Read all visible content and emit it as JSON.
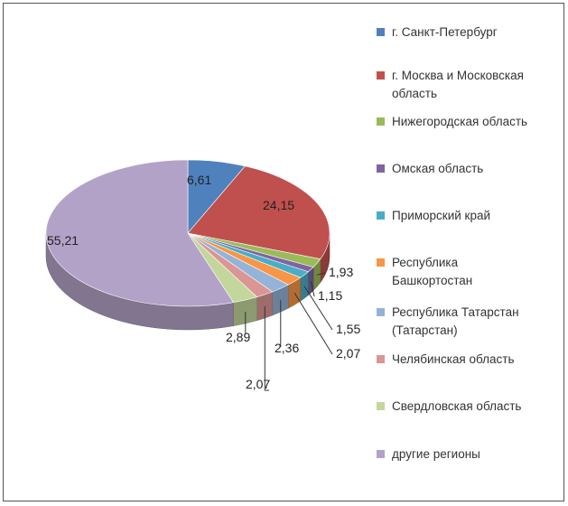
{
  "chart_data": {
    "type": "pie",
    "categories": [
      "г. Санкт-Петербург",
      "г. Москва и Московская область",
      "Нижегородская область",
      "Омская область",
      "Приморский край",
      "Республика Башкортостан",
      "Республика Татарстан (Татарстан)",
      "Челябинская область",
      "Свердловская область",
      "другие регионы"
    ],
    "legend_lines": [
      [
        "г. Санкт-Петербург"
      ],
      [
        "г. Москва и Московская",
        "область"
      ],
      [
        "Нижегородская область"
      ],
      [
        "Омская область"
      ],
      [
        "Приморский край"
      ],
      [
        "Республика",
        "Башкортостан"
      ],
      [
        "Республика Татарстан",
        "(Татарстан)"
      ],
      [
        "Челябинская область"
      ],
      [
        "Свердловская область"
      ],
      [
        "другие регионы"
      ]
    ],
    "values": [
      6.61,
      24.15,
      1.93,
      1.15,
      1.55,
      2.07,
      2.36,
      2.07,
      2.89,
      55.21
    ],
    "labels": [
      "6,61",
      "24,15",
      "1,93",
      "1,15",
      "1,55",
      "2,07",
      "2,36",
      "2,07",
      "2,89",
      "55,21"
    ],
    "colors": [
      "#4F81BD",
      "#C0504D",
      "#9BBB59",
      "#8064A2",
      "#4BACC6",
      "#F79646",
      "#95B3D7",
      "#DA9694",
      "#C3D69B",
      "#B3A2C7"
    ],
    "legend_placement": "right"
  }
}
